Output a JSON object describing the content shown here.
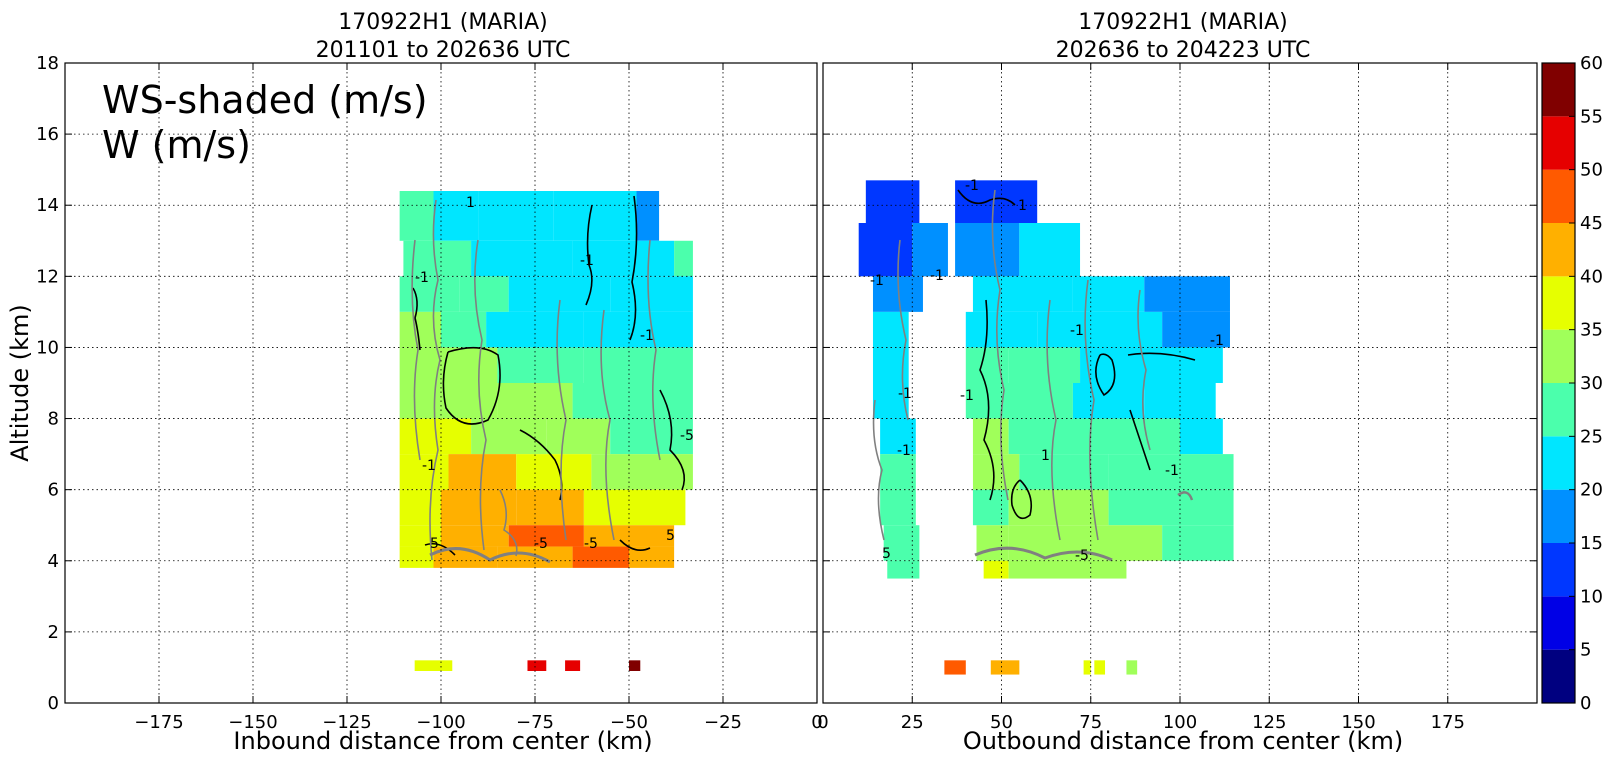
{
  "chart_data": [
    {
      "type": "heatmap",
      "title": "170922H1 (MARIA)",
      "subtitle": "201101 to 202636 UTC",
      "xlabel": "Inbound distance from center (km)",
      "ylabel": "Altitude (km)",
      "annotation_lines": [
        "WS-shaded (m/s)",
        "W (m/s)"
      ],
      "xlim": [
        -200,
        0
      ],
      "ylim": [
        0,
        18
      ],
      "xticks": [
        -175,
        -150,
        -125,
        -100,
        -75,
        -50,
        -25,
        0
      ],
      "xtick_labels": [
        "−175",
        "−150",
        "−125",
        "−100",
        "−75",
        "−50",
        "−25",
        "0"
      ],
      "yticks": [
        0,
        2,
        4,
        6,
        8,
        10,
        12,
        14,
        16,
        18
      ],
      "grid": true,
      "contour_labels": [
        "1",
        "-1",
        "5",
        "-5"
      ],
      "data_rows": [
        {
          "y": [
            13,
            14.4
          ],
          "segments": [
            [
              -111,
              -102,
              27.5
            ],
            [
              -102,
              -90,
              22.5
            ],
            [
              -90,
              -70,
              22.5
            ],
            [
              -70,
              -48,
              20
            ],
            [
              -48,
              -42,
              16
            ]
          ]
        },
        {
          "y": [
            12,
            13
          ],
          "segments": [
            [
              -110,
              -92,
              26
            ],
            [
              -92,
              -65,
              22
            ],
            [
              -65,
              -38,
              22
            ],
            [
              -38,
              -33,
              25
            ]
          ]
        },
        {
          "y": [
            11,
            12
          ],
          "segments": [
            [
              -111,
              -95,
              28
            ],
            [
              -95,
              -82,
              26
            ],
            [
              -82,
              -55,
              22
            ],
            [
              -55,
              -33,
              23
            ]
          ]
        },
        {
          "y": [
            10,
            11
          ],
          "segments": [
            [
              -111,
              -100,
              30
            ],
            [
              -100,
              -88,
              28
            ],
            [
              -88,
              -62,
              22
            ],
            [
              -62,
              -33,
              23
            ]
          ]
        },
        {
          "y": [
            9,
            10
          ],
          "segments": [
            [
              -111,
              -100,
              31
            ],
            [
              -100,
              -85,
              34
            ],
            [
              -85,
              -62,
              27
            ],
            [
              -62,
              -33,
              25
            ]
          ]
        },
        {
          "y": [
            8,
            9
          ],
          "segments": [
            [
              -111,
              -98,
              33
            ],
            [
              -98,
              -85,
              33
            ],
            [
              -85,
              -65,
              30
            ],
            [
              -65,
              -33,
              26
            ]
          ]
        },
        {
          "y": [
            7,
            8
          ],
          "segments": [
            [
              -111,
              -92,
              36
            ],
            [
              -92,
              -72,
              33
            ],
            [
              -72,
              -55,
              30
            ],
            [
              -55,
              -33,
              27
            ]
          ]
        },
        {
          "y": [
            6,
            7
          ],
          "segments": [
            [
              -111,
              -98,
              37
            ],
            [
              -98,
              -80,
              40
            ],
            [
              -80,
              -60,
              36
            ],
            [
              -60,
              -33,
              30
            ]
          ]
        },
        {
          "y": [
            5,
            6
          ],
          "segments": [
            [
              -111,
              -100,
              38
            ],
            [
              -100,
              -80,
              42
            ],
            [
              -80,
              -62,
              44
            ],
            [
              -62,
              -35,
              38
            ]
          ]
        },
        {
          "y": [
            4.4,
            5
          ],
          "segments": [
            [
              -111,
              -100,
              38
            ],
            [
              -100,
              -82,
              43
            ],
            [
              -82,
              -62,
              46
            ],
            [
              -62,
              -38,
              43
            ]
          ]
        },
        {
          "y": [
            3.8,
            4.4
          ],
          "segments": [
            [
              -111,
              -102,
              37
            ],
            [
              -102,
              -85,
              42
            ],
            [
              -85,
              -65,
              44
            ],
            [
              -65,
              -50,
              47
            ],
            [
              -50,
              -38,
              42
            ]
          ]
        },
        {
          "y": [
            0.9,
            1.2
          ],
          "segments": [
            [
              -107,
              -97,
              38
            ],
            [
              -77,
              -72,
              52
            ],
            [
              -67,
              -63,
              52
            ],
            [
              -50,
              -47,
              57
            ]
          ]
        }
      ]
    },
    {
      "type": "heatmap",
      "title": "170922H1 (MARIA)",
      "subtitle": "202636 to 204223 UTC",
      "xlabel": "Outbound distance from center (km)",
      "xlim": [
        0,
        200
      ],
      "ylim": [
        0,
        18
      ],
      "xticks": [
        0,
        25,
        50,
        75,
        100,
        125,
        150,
        175
      ],
      "xtick_labels": [
        "0",
        "25",
        "50",
        "75",
        "100",
        "125",
        "150",
        "175"
      ],
      "yticks": [
        0,
        2,
        4,
        6,
        8,
        10,
        12,
        14,
        16,
        18
      ],
      "grid": true,
      "contour_labels": [
        "1",
        "-1",
        "5",
        "-5"
      ],
      "data_rows": [
        {
          "y": [
            13.5,
            14.7
          ],
          "segments": [
            [
              12,
              27,
              13
            ],
            [
              37,
              60,
              14
            ]
          ]
        },
        {
          "y": [
            12,
            13.5
          ],
          "segments": [
            [
              10,
              25,
              11
            ],
            [
              25,
              35,
              15
            ],
            [
              37,
              55,
              17
            ],
            [
              55,
              72,
              20
            ]
          ]
        },
        {
          "y": [
            11,
            12
          ],
          "segments": [
            [
              14,
              28,
              17
            ],
            [
              42,
              70,
              20
            ],
            [
              70,
              90,
              22
            ],
            [
              90,
              114,
              16
            ]
          ]
        },
        {
          "y": [
            10,
            11
          ],
          "segments": [
            [
              14,
              24,
              22
            ],
            [
              40,
              60,
              22
            ],
            [
              60,
              95,
              23
            ],
            [
              95,
              114,
              19
            ]
          ]
        },
        {
          "y": [
            9,
            10
          ],
          "segments": [
            [
              14,
              24,
              22
            ],
            [
              40,
              52,
              25
            ],
            [
              52,
              72,
              26
            ],
            [
              72,
              100,
              22
            ],
            [
              100,
              112,
              23
            ]
          ]
        },
        {
          "y": [
            8,
            9
          ],
          "segments": [
            [
              14,
              24,
              23
            ],
            [
              40,
              50,
              28
            ],
            [
              50,
              70,
              29
            ],
            [
              70,
              90,
              24
            ],
            [
              90,
              110,
              20
            ]
          ]
        },
        {
          "y": [
            7,
            8
          ],
          "segments": [
            [
              16,
              26,
              24
            ],
            [
              42,
              52,
              30
            ],
            [
              52,
              75,
              28
            ],
            [
              75,
              100,
              25
            ],
            [
              100,
              112,
              22
            ]
          ]
        },
        {
          "y": [
            6,
            7
          ],
          "segments": [
            [
              16,
              26,
              25
            ],
            [
              42,
              55,
              30
            ],
            [
              55,
              80,
              29
            ],
            [
              80,
              115,
              27
            ]
          ]
        },
        {
          "y": [
            5,
            6
          ],
          "segments": [
            [
              16,
              26,
              26
            ],
            [
              42,
              52,
              29
            ],
            [
              52,
              80,
              31
            ],
            [
              80,
              115,
              27
            ]
          ]
        },
        {
          "y": [
            4,
            5
          ],
          "segments": [
            [
              17,
              27,
              26
            ],
            [
              43,
              52,
              32
            ],
            [
              52,
              75,
              31
            ],
            [
              75,
              95,
              32
            ],
            [
              95,
              115,
              28
            ]
          ]
        },
        {
          "y": [
            3.5,
            4
          ],
          "segments": [
            [
              18,
              27,
              26
            ],
            [
              45,
              52,
              36
            ],
            [
              52,
              75,
              32
            ],
            [
              75,
              85,
              33
            ]
          ]
        },
        {
          "y": [
            0.8,
            1.2
          ],
          "segments": [
            [
              34,
              40,
              46
            ],
            [
              47,
              55,
              41
            ],
            [
              73,
              75,
              37
            ],
            [
              76,
              79,
              37
            ],
            [
              85,
              88,
              34
            ]
          ]
        }
      ]
    },
    {
      "type": "colorbar",
      "levels": [
        0,
        5,
        10,
        15,
        20,
        25,
        30,
        35,
        40,
        45,
        50,
        55,
        60
      ],
      "colors": [
        "#000080",
        "#0000e6",
        "#0037ff",
        "#0090ff",
        "#00e6ff",
        "#4bffac",
        "#a0ff5a",
        "#e6ff00",
        "#ffb000",
        "#ff5a00",
        "#e60000",
        "#800000"
      ]
    }
  ]
}
